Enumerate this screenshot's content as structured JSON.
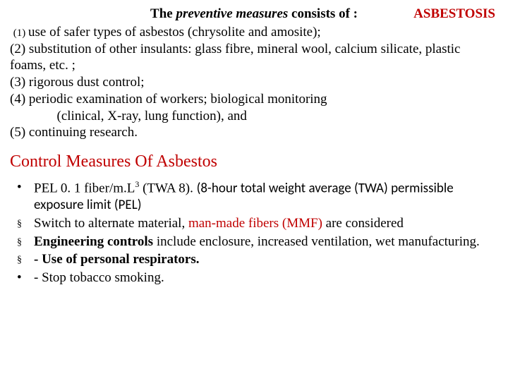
{
  "header": {
    "prefix": "The ",
    "italic": "preventive measures",
    "suffix": " consists of :",
    "tag": "ASBESTOSIS"
  },
  "prevent": {
    "l1a": "(1) ",
    "l1b": "use of safer types of asbestos (chrysolite and amosite);",
    "l2": "(2) substitution of other insulants: glass fibre, mineral wool, calcium silicate, plastic foams, etc. ;",
    "l3": " (3) rigorous dust control;",
    "l4a": "(4) periodic examination of workers; biological monitoring",
    "l4b": "              (clinical, X-ray, lung function), and",
    "l5": "(5) continuing research."
  },
  "section": "Control Measures Of Asbestos",
  "ctrl": {
    "b1a": "PEL 0. 1 fiber/m.L",
    "b1sup": "3",
    "b1b": " (TWA 8). ",
    "b1c": "(8-hour total weight average (TWA) permissible exposure limit (PEL)",
    "b2a": "Switch to alternate material, ",
    "b2b": "man-made fibers (MMF)",
    "b2c": " are considered",
    "b3a": "Engineering controls",
    "b3b": " include enclosure, increased ventilation, wet manufacturing.",
    "b4": "- Use of personal respirators.",
    "b5": "- Stop tobacco smoking."
  },
  "bullets": {
    "dot": "•",
    "square": "§"
  }
}
